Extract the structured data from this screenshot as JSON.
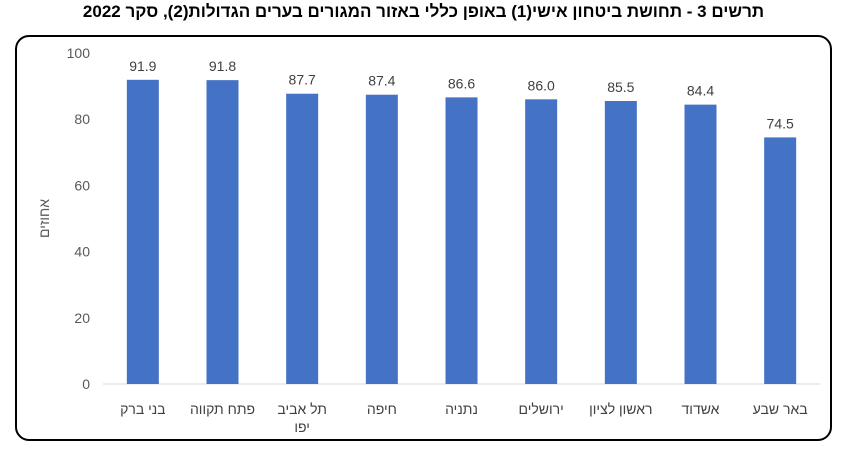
{
  "chart_data": {
    "type": "bar",
    "title": "תרשים 3 - תחושת ביטחון אישי(1) באופן כללי באזור המגורים בערים הגדולות(2), סקר 2022",
    "ylabel": "אחוזים",
    "xlabel": "",
    "ylim": [
      0,
      100
    ],
    "yticks": [
      0,
      20,
      40,
      60,
      80,
      100
    ],
    "grid": false,
    "categories": [
      [
        "בני ברק"
      ],
      [
        "פתח תקווה"
      ],
      [
        "תל אביב",
        "יפו"
      ],
      [
        "חיפה"
      ],
      [
        "נתניה"
      ],
      [
        "ירושלים"
      ],
      [
        "ראשון לציון"
      ],
      [
        "אשדוד"
      ],
      [
        "באר שבע"
      ]
    ],
    "values": [
      91.9,
      91.8,
      87.7,
      87.4,
      86.6,
      86.0,
      85.5,
      84.4,
      74.5
    ],
    "bar_color": "#4472C4"
  }
}
